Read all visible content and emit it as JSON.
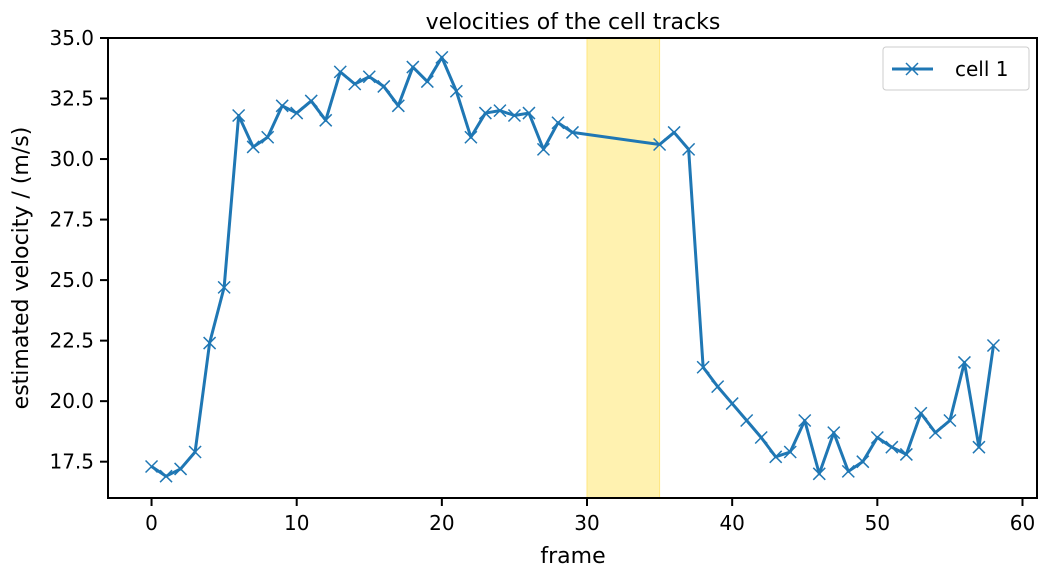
{
  "chart_data": {
    "type": "line",
    "title": "velocities of the cell tracks",
    "xlabel": "frame",
    "ylabel": "estimated velocity / (m/s)",
    "xlim": [
      -3,
      61
    ],
    "ylim": [
      16,
      35
    ],
    "xticks": [
      0,
      10,
      20,
      30,
      40,
      50,
      60
    ],
    "xtick_labels": [
      "0",
      "10",
      "20",
      "30",
      "40",
      "50",
      "60"
    ],
    "yticks": [
      17.5,
      20.0,
      22.5,
      25.0,
      27.5,
      30.0,
      32.5,
      35.0
    ],
    "ytick_labels": [
      "17.5",
      "20.0",
      "22.5",
      "25.0",
      "27.5",
      "30.0",
      "32.5",
      "35.0"
    ],
    "grid": false,
    "legend_position": "top-right",
    "highlight_span": {
      "x_start": 30,
      "x_end": 35,
      "color": "#fff2b0"
    },
    "series": [
      {
        "name": "cell 1",
        "color": "#1f77b4",
        "marker": "x",
        "x": [
          0,
          1,
          2,
          3,
          4,
          5,
          6,
          7,
          8,
          9,
          10,
          11,
          12,
          13,
          14,
          15,
          16,
          17,
          18,
          19,
          20,
          21,
          22,
          23,
          24,
          25,
          26,
          27,
          28,
          29,
          35,
          36,
          37,
          38,
          39,
          40,
          41,
          42,
          43,
          44,
          45,
          46,
          47,
          48,
          49,
          50,
          51,
          52,
          53,
          54,
          55,
          56,
          57,
          58
        ],
        "y": [
          17.3,
          16.9,
          17.2,
          17.9,
          22.4,
          24.7,
          31.8,
          30.5,
          30.9,
          32.2,
          31.9,
          32.4,
          31.6,
          33.6,
          33.1,
          33.4,
          33.0,
          32.2,
          33.8,
          33.2,
          34.2,
          32.8,
          30.9,
          31.9,
          32.0,
          31.8,
          31.9,
          30.4,
          31.5,
          31.1,
          30.6,
          31.1,
          30.4,
          21.4,
          20.6,
          19.9,
          19.2,
          18.5,
          17.7,
          17.9,
          19.2,
          17.0,
          18.7,
          17.1,
          17.5,
          18.5,
          18.1,
          17.8,
          19.5,
          18.7,
          19.2,
          21.6,
          18.1,
          22.3
        ]
      }
    ]
  }
}
